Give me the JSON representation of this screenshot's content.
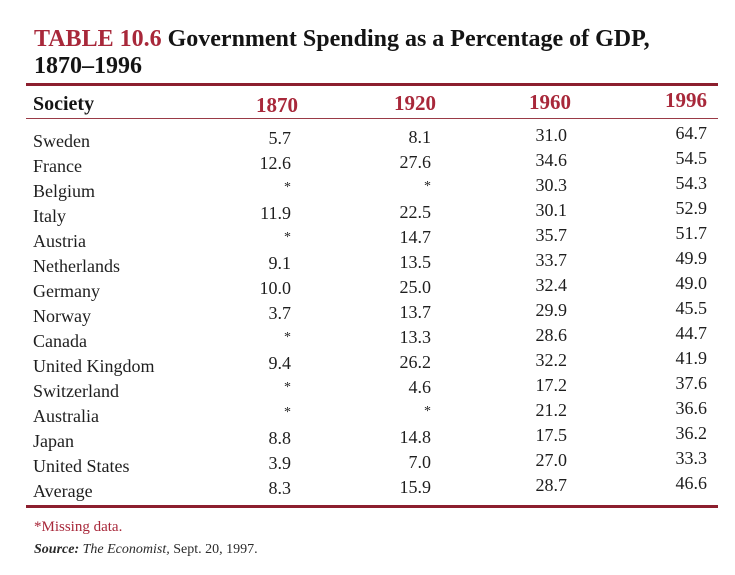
{
  "title": {
    "label": "TABLE 10.6",
    "text_line1": "Government Spending as a Percentage of GDP,",
    "text_line2": "1870–1996"
  },
  "columns": [
    "Society",
    "1870",
    "1920",
    "1960",
    "1996"
  ],
  "rows": [
    {
      "society": "Sweden",
      "y1870": "5.7",
      "y1920": "8.1",
      "y1960": "31.0",
      "y1996": "64.7"
    },
    {
      "society": "France",
      "y1870": "12.6",
      "y1920": "27.6",
      "y1960": "34.6",
      "y1996": "54.5"
    },
    {
      "society": "Belgium",
      "y1870": "*",
      "y1920": "*",
      "y1960": "30.3",
      "y1996": "54.3"
    },
    {
      "society": "Italy",
      "y1870": "11.9",
      "y1920": "22.5",
      "y1960": "30.1",
      "y1996": "52.9"
    },
    {
      "society": "Austria",
      "y1870": "*",
      "y1920": "14.7",
      "y1960": "35.7",
      "y1996": "51.7"
    },
    {
      "society": "Netherlands",
      "y1870": "9.1",
      "y1920": "13.5",
      "y1960": "33.7",
      "y1996": "49.9"
    },
    {
      "society": "Germany",
      "y1870": "10.0",
      "y1920": "25.0",
      "y1960": "32.4",
      "y1996": "49.0"
    },
    {
      "society": "Norway",
      "y1870": "3.7",
      "y1920": "13.7",
      "y1960": "29.9",
      "y1996": "45.5"
    },
    {
      "society": "Canada",
      "y1870": "*",
      "y1920": "13.3",
      "y1960": "28.6",
      "y1996": "44.7"
    },
    {
      "society": "United Kingdom",
      "y1870": "9.4",
      "y1920": "26.2",
      "y1960": "32.2",
      "y1996": "41.9"
    },
    {
      "society": "Switzerland",
      "y1870": "*",
      "y1920": "4.6",
      "y1960": "17.2",
      "y1996": "37.6"
    },
    {
      "society": "Australia",
      "y1870": "*",
      "y1920": "*",
      "y1960": "21.2",
      "y1996": "36.6"
    },
    {
      "society": "Japan",
      "y1870": "8.8",
      "y1920": "14.8",
      "y1960": "17.5",
      "y1996": "36.2"
    },
    {
      "society": "United States",
      "y1870": "3.9",
      "y1920": "7.0",
      "y1960": "27.0",
      "y1996": "33.3"
    },
    {
      "society": "Average",
      "y1870": "8.3",
      "y1920": "15.9",
      "y1960": "28.7",
      "y1996": "46.6"
    }
  ],
  "footnote": "*Missing data.",
  "source": {
    "label": "Source:",
    "publication": "The Economist,",
    "date": "Sept. 20, 1997."
  },
  "colors": {
    "accent": "#a8283a",
    "rule": "#8c1f2e",
    "text": "#1c1c1c"
  }
}
